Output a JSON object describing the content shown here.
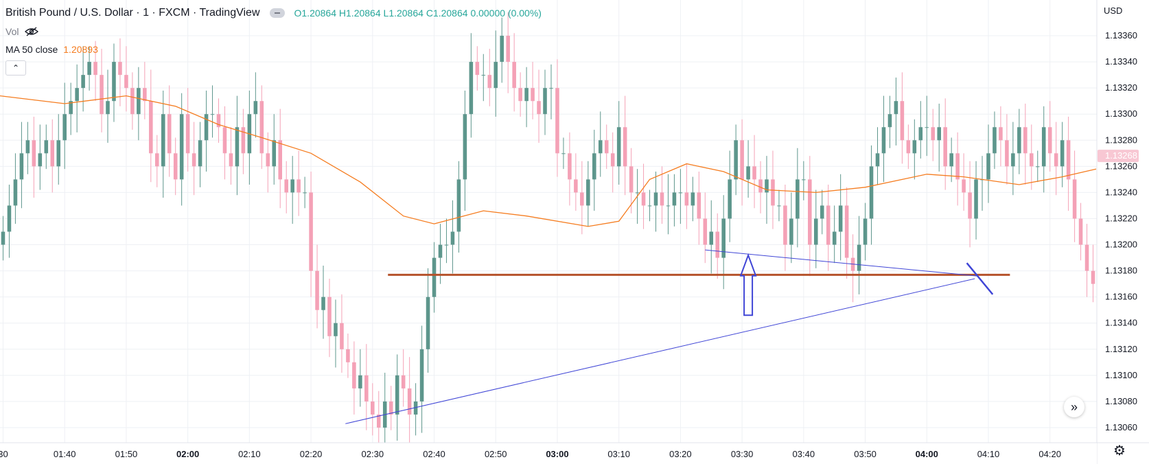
{
  "legend": {
    "title": "British Pound / U.S. Dollar · 1 · FXCM · TradingView",
    "ohlc": {
      "o_label": "O",
      "o": "1.20864",
      "h_label": "H",
      "h": "1.20864",
      "l_label": "L",
      "l": "1.20864",
      "c_label": "C",
      "c": "1.20864",
      "change": "0.00000 (0.00%)"
    },
    "vol_label": "Vol",
    "ma_label": "MA 50 close",
    "ma_value": "1.20893"
  },
  "price_scale": {
    "currency": "USD",
    "last_price": "1.13268"
  },
  "colors": {
    "up": "#5d968c",
    "down": "#f4a1b6",
    "ma": "#f57c1f",
    "trendline": "#3f45d6",
    "support": "#b5522b",
    "grid": "#eef0f4",
    "last_price_bg": "#f8c7d3"
  },
  "chart_data": {
    "type": "candlestick",
    "title": "British Pound / U.S. Dollar · 1 · FXCM · TradingView",
    "ylim": [
      1.1305,
      1.1338
    ],
    "y_ticks": [
      "1.13360",
      "1.13340",
      "1.13320",
      "1.13300",
      "1.13280",
      "1.13260",
      "1.13240",
      "1.13220",
      "1.13200",
      "1.13180",
      "1.13160",
      "1.13140",
      "1.13120",
      "1.13100",
      "1.13080",
      "1.13060"
    ],
    "x_range_minutes": [
      89.5,
      267.5
    ],
    "x_ticks": [
      {
        "m": 90,
        "label": "30",
        "bold": false
      },
      {
        "m": 100,
        "label": "01:40",
        "bold": false
      },
      {
        "m": 110,
        "label": "01:50",
        "bold": false
      },
      {
        "m": 120,
        "label": "02:00",
        "bold": true
      },
      {
        "m": 130,
        "label": "02:10",
        "bold": false
      },
      {
        "m": 140,
        "label": "02:20",
        "bold": false
      },
      {
        "m": 150,
        "label": "02:30",
        "bold": false
      },
      {
        "m": 160,
        "label": "02:40",
        "bold": false
      },
      {
        "m": 170,
        "label": "02:50",
        "bold": false
      },
      {
        "m": 180,
        "label": "03:00",
        "bold": true
      },
      {
        "m": 190,
        "label": "03:10",
        "bold": false
      },
      {
        "m": 200,
        "label": "03:20",
        "bold": false
      },
      {
        "m": 210,
        "label": "03:30",
        "bold": false
      },
      {
        "m": 220,
        "label": "03:40",
        "bold": false
      },
      {
        "m": 230,
        "label": "03:50",
        "bold": false
      },
      {
        "m": 240,
        "label": "04:00",
        "bold": true
      },
      {
        "m": 250,
        "label": "04:10",
        "bold": false
      },
      {
        "m": 260,
        "label": "04:20",
        "bold": false
      }
    ],
    "closes": [
      1.1321,
      1.1323,
      1.1325,
      1.1327,
      1.1328,
      1.1326,
      1.1327,
      1.1328,
      1.1326,
      1.1328,
      1.133,
      1.1331,
      1.1332,
      1.1333,
      1.1334,
      1.1333,
      1.133,
      1.1331,
      1.1334,
      1.1333,
      1.1332,
      1.133,
      1.1332,
      1.1331,
      1.1327,
      1.1326,
      1.133,
      1.1327,
      1.1325,
      1.133,
      1.1327,
      1.1326,
      1.1328,
      1.133,
      1.133,
      1.1329,
      1.1327,
      1.1326,
      1.1329,
      1.1327,
      1.133,
      1.1331,
      1.1327,
      1.1326,
      1.1328,
      1.1325,
      1.1324,
      1.1325,
      1.1324,
      1.1324,
      1.1318,
      1.1315,
      1.1316,
      1.1313,
      1.1314,
      1.1312,
      1.1311,
      1.1309,
      1.131,
      1.1308,
      1.1307,
      1.1306,
      1.1308,
      1.1307,
      1.131,
      1.1309,
      1.1307,
      1.1308,
      1.1312,
      1.1316,
      1.1319,
      1.132,
      1.132,
      1.1321,
      1.1325,
      1.133,
      1.1334,
      1.1333,
      1.1333,
      1.1332,
      1.1334,
      1.1336,
      1.1334,
      1.1332,
      1.1331,
      1.1332,
      1.1331,
      1.133,
      1.1332,
      1.1332,
      1.1327,
      1.1327,
      1.1325,
      1.1324,
      1.1323,
      1.1325,
      1.1327,
      1.1328,
      1.1327,
      1.1326,
      1.1329,
      1.1326,
      1.1324,
      1.1324,
      1.1323,
      1.1323,
      1.1324,
      1.1323,
      1.1323,
      1.1324,
      1.1324,
      1.1323,
      1.1324,
      1.1322,
      1.132,
      1.1321,
      1.1319,
      1.1322,
      1.1325,
      1.1328,
      1.1325,
      1.1326,
      1.1325,
      1.1324,
      1.1325,
      1.1323,
      1.1323,
      1.132,
      1.1322,
      1.1325,
      1.1325,
      1.132,
      1.1322,
      1.1323,
      1.132,
      1.1321,
      1.1323,
      1.1319,
      1.1318,
      1.132,
      1.1322,
      1.1326,
      1.1327,
      1.1329,
      1.133,
      1.1331,
      1.1328,
      1.1327,
      1.1328,
      1.1329,
      1.1329,
      1.1328,
      1.1329,
      1.1326,
      1.1327,
      1.1325,
      1.1324,
      1.1322,
      1.1325,
      1.1325,
      1.1327,
      1.1329,
      1.1328,
      1.1326,
      1.1327,
      1.1329,
      1.1327,
      1.1326,
      1.1326,
      1.1329,
      1.1327,
      1.1326,
      1.1328,
      1.1325,
      1.1322,
      1.132,
      1.1318,
      1.1317,
      1.1319,
      1.132,
      1.1322,
      1.1324,
      1.1323,
      1.1324,
      1.1323,
      1.1324,
      1.1328,
      1.1327,
      1.1326,
      1.133,
      1.1328,
      1.1327
    ],
    "ma50": [
      {
        "m": 89.5,
        "v": 1.13314
      },
      {
        "m": 100,
        "v": 1.13308
      },
      {
        "m": 110,
        "v": 1.13314
      },
      {
        "m": 118,
        "v": 1.13306
      },
      {
        "m": 125,
        "v": 1.13292
      },
      {
        "m": 132,
        "v": 1.13282
      },
      {
        "m": 140,
        "v": 1.1327
      },
      {
        "m": 148,
        "v": 1.13248
      },
      {
        "m": 155,
        "v": 1.13222
      },
      {
        "m": 160,
        "v": 1.13216
      },
      {
        "m": 168,
        "v": 1.13226
      },
      {
        "m": 175,
        "v": 1.13222
      },
      {
        "m": 185,
        "v": 1.13214
      },
      {
        "m": 190,
        "v": 1.13218
      },
      {
        "m": 195,
        "v": 1.1325
      },
      {
        "m": 201,
        "v": 1.13262
      },
      {
        "m": 207,
        "v": 1.13256
      },
      {
        "m": 214,
        "v": 1.13242
      },
      {
        "m": 222,
        "v": 1.1324
      },
      {
        "m": 230,
        "v": 1.13244
      },
      {
        "m": 240,
        "v": 1.13254
      },
      {
        "m": 246,
        "v": 1.13252
      },
      {
        "m": 255,
        "v": 1.13246
      },
      {
        "m": 262,
        "v": 1.13252
      },
      {
        "m": 267.5,
        "v": 1.13258
      }
    ],
    "support_line": {
      "m1": 152.5,
      "m2": 253.5,
      "price": 1.13177
    },
    "trendlines": [
      {
        "m1": 145.6,
        "p1": 1.13063,
        "m2": 247.8,
        "p2": 1.13174
      },
      {
        "m1": 204.0,
        "p1": 1.13196,
        "m2": 248.3,
        "p2": 1.13176
      }
    ],
    "short_stroke": {
      "m1": 246.5,
      "p1": 1.13186,
      "m2": 250.7,
      "p2": 1.13162
    },
    "arrow": {
      "m": 211.0,
      "tip": 1.13192,
      "base": 1.13146
    }
  }
}
